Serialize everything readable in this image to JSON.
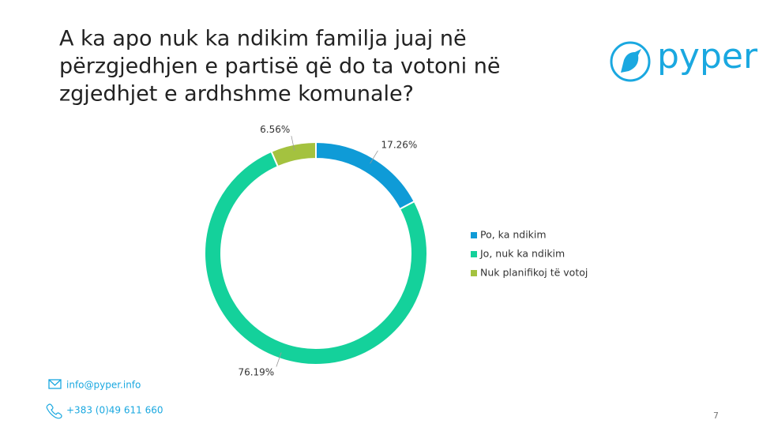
{
  "chart_data": {
    "type": "donut",
    "title": [
      "A ka apo nuk ka ndikim familja juaj në",
      "përzgjedhjen e partisë që do ta votoni në",
      "zgjedhjet e ardhshme komunale?"
    ],
    "categories": [
      "Po, ka ndikim",
      "Jo, nuk ka ndikim",
      "Nuk planifikoj të votoj"
    ],
    "values": [
      17.26,
      76.19,
      6.56
    ],
    "value_labels": [
      "17.26%",
      "76.19%",
      "6.56%"
    ],
    "colors": [
      "#0f9bd7",
      "#14d19b",
      "#a4c23f"
    ],
    "legend": "right"
  },
  "logo": "pyper",
  "footer": {
    "email": "info@pyper.info",
    "phone": "+383 (0)49 611 660"
  },
  "page_number": "7"
}
